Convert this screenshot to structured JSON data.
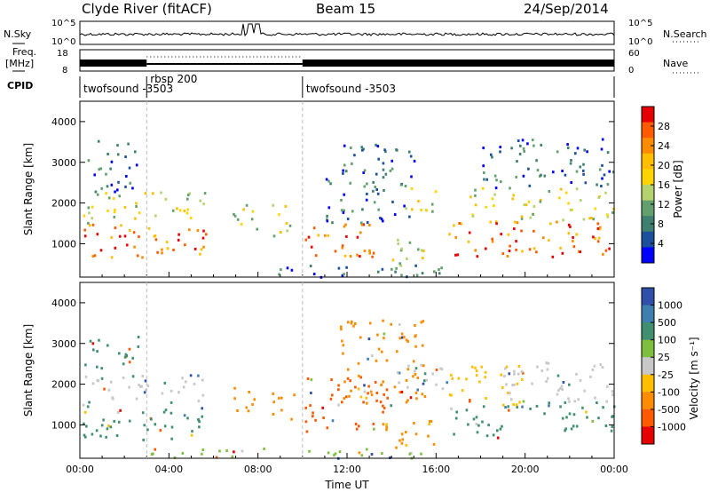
{
  "header": {
    "station": "Clyde River (fitACF)",
    "beam": "Beam 15",
    "date": "24/Sep/2014"
  },
  "top_panels": {
    "nsky": {
      "label": "N.Sky",
      "right_label": "N.Search",
      "ticks_left": [
        "10^5",
        "10^0"
      ],
      "ticks_right": [
        "10^5",
        "10^0"
      ]
    },
    "freq": {
      "label_line1": "Freq.",
      "label_line2": "[MHz]",
      "ticks_left": [
        "18",
        "8"
      ],
      "right_label": "Nave",
      "ticks_right": [
        "60",
        "0"
      ]
    },
    "cpid": {
      "label": "CPID",
      "segments": [
        {
          "label": "twofsound -3503",
          "start_hour": 0,
          "end_hour": 3.0
        },
        {
          "label": "rbsp 200",
          "start_hour": 3.0,
          "end_hour": 10.0
        },
        {
          "label": "twofsound -3503",
          "start_hour": 10.0,
          "end_hour": 24.0
        }
      ]
    }
  },
  "chart_data": [
    {
      "type": "heatmap",
      "title": "",
      "ylabel": "Slant Range [km]",
      "xlabel": "",
      "x_range_hours": [
        0,
        24
      ],
      "ylim": [
        180,
        4500
      ],
      "y_ticks": [
        "1000",
        "2000",
        "3000",
        "4000"
      ],
      "colorbar": {
        "label": "Power [dB]",
        "ticks": [
          "28",
          "24",
          "20",
          "16",
          "12",
          "8",
          "4"
        ],
        "colors": [
          "#e60000",
          "#ff5a00",
          "#ff8c00",
          "#ffbf00",
          "#ffd400",
          "#b4d26e",
          "#63a06e",
          "#3f7f70",
          "#1c4f9c",
          "#0000ff"
        ]
      },
      "scatter_clusters": [
        {
          "t": [
            0.1,
            3.0
          ],
          "r": [
            650,
            1500
          ],
          "weight": "strong"
        },
        {
          "t": [
            0.1,
            3.0
          ],
          "r": [
            1500,
            2300
          ],
          "weight": "medium"
        },
        {
          "t": [
            0.3,
            2.6
          ],
          "r": [
            2300,
            3600
          ],
          "weight": "weak"
        },
        {
          "t": [
            3.0,
            5.8
          ],
          "r": [
            650,
            1500
          ],
          "weight": "strong"
        },
        {
          "t": [
            3.2,
            5.6
          ],
          "r": [
            1500,
            2300
          ],
          "weight": "medium"
        },
        {
          "t": [
            6.8,
            8.0
          ],
          "r": [
            1200,
            2000
          ],
          "weight": "medium"
        },
        {
          "t": [
            8.6,
            9.6
          ],
          "r": [
            1100,
            2000
          ],
          "weight": "medium"
        },
        {
          "t": [
            10.1,
            13.5
          ],
          "r": [
            700,
            1600
          ],
          "weight": "strong"
        },
        {
          "t": [
            11.0,
            15.0
          ],
          "r": [
            1500,
            3500
          ],
          "weight": "weak"
        },
        {
          "t": [
            13.5,
            15.5
          ],
          "r": [
            400,
            1200
          ],
          "weight": "medium"
        },
        {
          "t": [
            14.5,
            16.0
          ],
          "r": [
            1800,
            2500
          ],
          "weight": "medium"
        },
        {
          "t": [
            16.5,
            24.0
          ],
          "r": [
            700,
            1600
          ],
          "weight": "strong"
        },
        {
          "t": [
            17.5,
            24.0
          ],
          "r": [
            1600,
            2400
          ],
          "weight": "medium"
        },
        {
          "t": [
            18.0,
            24.0
          ],
          "r": [
            2400,
            3600
          ],
          "weight": "weak"
        },
        {
          "t": [
            8.0,
            16.5
          ],
          "r": [
            200,
            500
          ],
          "weight": "weak"
        }
      ]
    },
    {
      "type": "heatmap",
      "title": "",
      "ylabel": "Slant Range [km]",
      "xlabel": "Time UT",
      "x_ticks": [
        "00:00",
        "04:00",
        "08:00",
        "12:00",
        "16:00",
        "20:00",
        "00:00"
      ],
      "x_range_hours": [
        0,
        24
      ],
      "ylim": [
        180,
        4500
      ],
      "y_ticks": [
        "1000",
        "2000",
        "3000",
        "4000"
      ],
      "colorbar": {
        "label": "Velocity [m s⁻¹]",
        "ticks": [
          "1000",
          "500",
          "100",
          "25",
          "-25",
          "-100",
          "-500",
          "-1000"
        ],
        "colors": [
          "#2f4fa8",
          "#3f7fb0",
          "#3f8f70",
          "#7fbf3f",
          "#c8c8c8",
          "#ffbf00",
          "#ff8c00",
          "#ff5a00",
          "#e60000"
        ]
      },
      "scatter_clusters": [
        {
          "t": [
            0.1,
            5.6
          ],
          "r": [
            650,
            1600
          ],
          "color": "#3f8f70"
        },
        {
          "t": [
            0.1,
            5.6
          ],
          "r": [
            1600,
            2300
          ],
          "color": "#c8c8c8"
        },
        {
          "t": [
            0.2,
            3.0
          ],
          "r": [
            2400,
            3200
          ],
          "color": "#3f8f70"
        },
        {
          "t": [
            6.8,
            8.0
          ],
          "r": [
            1300,
            2000
          ],
          "color": "#ff8c00"
        },
        {
          "t": [
            8.5,
            9.6
          ],
          "r": [
            1100,
            1900
          ],
          "color": "#ff8c00"
        },
        {
          "t": [
            10.1,
            13.8
          ],
          "r": [
            800,
            2200
          ],
          "color": "#ff5a00"
        },
        {
          "t": [
            11.5,
            15.5
          ],
          "r": [
            1500,
            3600
          ],
          "color": "#ff8c00"
        },
        {
          "t": [
            14.0,
            16.5
          ],
          "r": [
            1800,
            2500
          ],
          "color": "#c8c8c8"
        },
        {
          "t": [
            13.5,
            16.0
          ],
          "r": [
            400,
            1200
          ],
          "color": "#ff8c00"
        },
        {
          "t": [
            16.5,
            20.0
          ],
          "r": [
            700,
            1500
          ],
          "color": "#3f8f70"
        },
        {
          "t": [
            16.5,
            20.0
          ],
          "r": [
            1500,
            2500
          ],
          "color": "#ffbf00"
        },
        {
          "t": [
            20.0,
            24.0
          ],
          "r": [
            800,
            1600
          ],
          "color": "#3f8f70"
        },
        {
          "t": [
            19.0,
            24.0
          ],
          "r": [
            1600,
            2600
          ],
          "color": "#c8c8c8"
        },
        {
          "t": [
            3.0,
            16.0
          ],
          "r": [
            200,
            450
          ],
          "color": "#7fbf3f"
        }
      ]
    }
  ]
}
